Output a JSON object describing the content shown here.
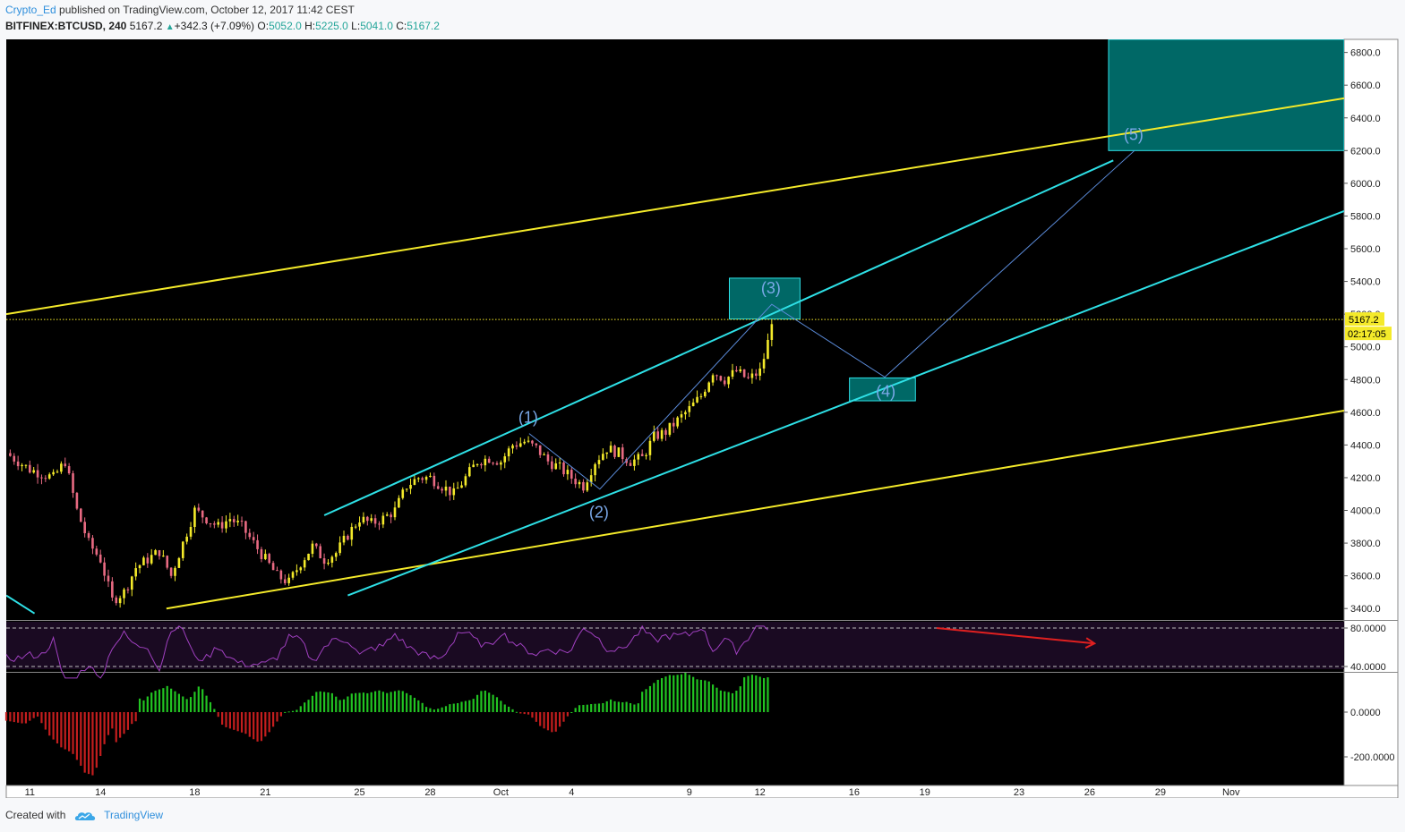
{
  "header": {
    "author": "Crypto_Ed",
    "published_text": "published on TradingView.com, October 12, 2017 11:42 CEST",
    "symbol": "BITFINEX:BTCUSD, 240",
    "last": "5167.2",
    "change": "+342.3 (+7.09%)",
    "open_label": "O:",
    "open": "5052.0",
    "high_label": "H:",
    "high": "5225.0",
    "low_label": "L:",
    "low": "5041.0",
    "close_label": "C:",
    "close": "5167.2"
  },
  "footer": {
    "created_with": "Created with",
    "brand": "TradingView"
  },
  "chart_data": {
    "type": "candlestick",
    "symbol": "BITFINEX:BTCUSD",
    "interval": "240",
    "price_axis": {
      "ticks": [
        3400,
        3600,
        3800,
        4000,
        4200,
        4400,
        4600,
        4800,
        5000,
        5200,
        5400,
        5600,
        5800,
        6000,
        6200,
        6400,
        6600,
        6800
      ],
      "ylim": [
        3330,
        6880
      ]
    },
    "time_axis": {
      "ticks": [
        {
          "label": "11",
          "day": 0
        },
        {
          "label": "14",
          "day": 3
        },
        {
          "label": "18",
          "day": 7
        },
        {
          "label": "21",
          "day": 10
        },
        {
          "label": "25",
          "day": 14
        },
        {
          "label": "28",
          "day": 17
        },
        {
          "label": "Oct",
          "day": 20
        },
        {
          "label": "4",
          "day": 23
        },
        {
          "label": "9",
          "day": 28
        },
        {
          "label": "12",
          "day": 31
        },
        {
          "label": "16",
          "day": 35
        },
        {
          "label": "19",
          "day": 38
        },
        {
          "label": "23",
          "day": 42
        },
        {
          "label": "26",
          "day": 45
        },
        {
          "label": "29",
          "day": 48
        },
        {
          "label": "Nov",
          "day": 51
        }
      ],
      "xlim": [
        -1,
        55.8
      ]
    },
    "current_price": {
      "value": 5167.2,
      "label": "5167.2",
      "countdown": "02:17:05"
    },
    "price_path": [
      [
        -1,
        4350
      ],
      [
        0,
        4250
      ],
      [
        1,
        4200
      ],
      [
        1.5,
        4300
      ],
      [
        2,
        4000
      ],
      [
        2.5,
        3800
      ],
      [
        3,
        3700
      ],
      [
        3.5,
        3450
      ],
      [
        4,
        3500
      ],
      [
        4.5,
        3650
      ],
      [
        5,
        3700
      ],
      [
        5.5,
        3750
      ],
      [
        6,
        3600
      ],
      [
        6.5,
        3800
      ],
      [
        7,
        4000
      ],
      [
        7.5,
        3950
      ],
      [
        8,
        3900
      ],
      [
        8.5,
        3950
      ],
      [
        9,
        3900
      ],
      [
        9.5,
        3800
      ],
      [
        10,
        3700
      ],
      [
        10.5,
        3600
      ],
      [
        11,
        3560
      ],
      [
        11.5,
        3680
      ],
      [
        12,
        3780
      ],
      [
        12.5,
        3700
      ],
      [
        13,
        3740
      ],
      [
        13.5,
        3850
      ],
      [
        14,
        3950
      ],
      [
        14.5,
        3920
      ],
      [
        15,
        3950
      ],
      [
        15.5,
        4000
      ],
      [
        16,
        4150
      ],
      [
        16.5,
        4200
      ],
      [
        17,
        4200
      ],
      [
        17.5,
        4150
      ],
      [
        18,
        4100
      ],
      [
        18.5,
        4200
      ],
      [
        19,
        4300
      ],
      [
        19.5,
        4320
      ],
      [
        20,
        4300
      ],
      [
        20.5,
        4400
      ],
      [
        21,
        4420
      ],
      [
        21.5,
        4380
      ],
      [
        22,
        4300
      ],
      [
        22.5,
        4260
      ],
      [
        23,
        4200
      ],
      [
        23.5,
        4150
      ],
      [
        24,
        4300
      ],
      [
        24.5,
        4380
      ],
      [
        25,
        4350
      ],
      [
        25.5,
        4300
      ],
      [
        26,
        4320
      ],
      [
        26.5,
        4450
      ],
      [
        27,
        4480
      ],
      [
        27.5,
        4550
      ],
      [
        28,
        4620
      ],
      [
        28.5,
        4700
      ],
      [
        29,
        4850
      ],
      [
        29.5,
        4800
      ],
      [
        30,
        4850
      ],
      [
        30.5,
        4800
      ],
      [
        31,
        4850
      ],
      [
        31.3,
        5000
      ],
      [
        31.5,
        5167.2
      ]
    ],
    "wave_points": [
      {
        "label": "(1)",
        "day": 21.2,
        "price": 4470
      },
      {
        "label": "(2)",
        "day": 24.2,
        "price": 4130
      },
      {
        "label": "(3)",
        "day": 31.5,
        "price": 5260
      },
      {
        "label": "(4)",
        "day": 36.3,
        "price": 4815
      },
      {
        "label": "(5)",
        "day": 46.9,
        "price": 6200
      }
    ],
    "trendlines": [
      {
        "color": "#f4ea2a",
        "from": [
          -1,
          5200
        ],
        "to": [
          55.8,
          6520
        ]
      },
      {
        "color": "#f4ea2a",
        "from": [
          5.8,
          3400
        ],
        "to": [
          55.8,
          4610
        ]
      },
      {
        "color": "#2ee0e6",
        "from": [
          13.5,
          3480
        ],
        "to": [
          55.8,
          5830
        ]
      },
      {
        "color": "#2ee0e6",
        "from": [
          12.5,
          3970
        ],
        "to": [
          46,
          6140
        ]
      },
      {
        "color": "#2ee0e6",
        "from": [
          -1,
          3480
        ],
        "to": [
          0.2,
          3370
        ]
      }
    ],
    "target_boxes": [
      {
        "day_from": 29.7,
        "day_to": 32.7,
        "price_from": 5170,
        "price_to": 5420
      },
      {
        "day_from": 34.8,
        "day_to": 37.6,
        "price_from": 4670,
        "price_to": 4810
      },
      {
        "day_from": 45.8,
        "day_to": 55.8,
        "price_from": 6200,
        "price_to": 6880
      }
    ],
    "rsi": {
      "ticks": [
        80,
        40
      ],
      "upper": 80,
      "lower": 40
    },
    "histogram": {
      "ticks": [
        0,
        -200
      ],
      "labels": [
        "0.0000",
        "-200.0000"
      ]
    },
    "colors": {
      "up": "#f4ea2a",
      "down": "#e86a82",
      "hist_pos": "#22c422",
      "hist_neg": "#c41e1e",
      "rsi": "#a040c0",
      "box": "#007a78",
      "box_border": "#2ee0e6"
    }
  }
}
